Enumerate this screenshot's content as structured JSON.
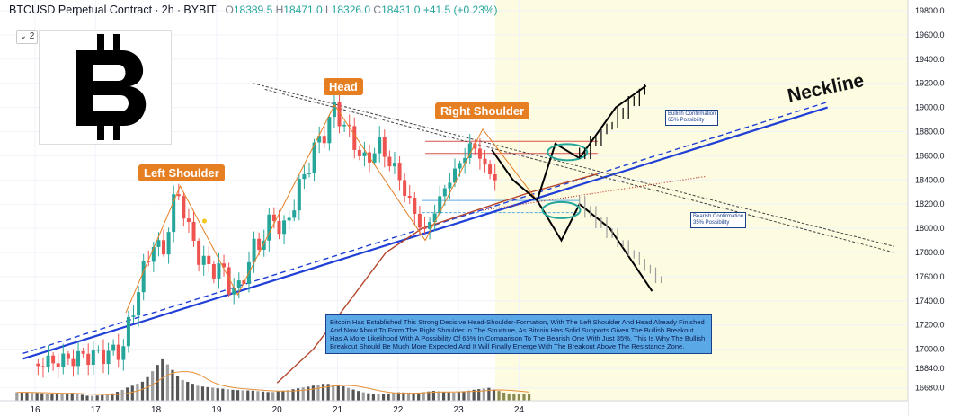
{
  "header": {
    "symbol": "BTCUSD Perpetual Contract",
    "interval": "2h",
    "exchange": "BYBIT",
    "open_label": "O",
    "open": "18389.5",
    "high_label": "H",
    "high": "18471.0",
    "low_label": "L",
    "low": "18326.0",
    "close_label": "C",
    "close": "18431.0",
    "change": "+41.5 (+0.23%)"
  },
  "indicator_toggle": "2",
  "logo": {
    "icon": "bitcoin-logo-icon"
  },
  "annotations": {
    "left_shoulder": "Left Shoulder",
    "head": "Head",
    "right_shoulder": "Right Shoulder",
    "neckline": "Neckline",
    "bullish_confirmation": "Bullish Confirmation\n65% Possibility",
    "bearish_confirmation": "Bearish Confirmation\n35% Possibility",
    "note": "Bitcoin Has Established This Strong Decisive Head-Shoulder-Formation, With The Left Shoulder And Head Already Finished And Now About To Form The Right Shoulder In The Structure, As Bitcoin Has Solid Supports Given The Bullish Breakout Has A More Likelihood With A Possibility Of 65% In Comparison To The Bearish One With Just 35%, This Is Why The Bullish Breakout Should Be Much More Expected And It Will Finally Emerge With The Breakout Above The Resistance Zone."
  },
  "colors": {
    "up": "#26a69a",
    "down": "#ef5350",
    "neckline": "#1f3fd6",
    "pattern": "#e67e22",
    "ma": "#b5452b",
    "projection_zone": "#fdfbe0"
  },
  "chart_data": {
    "type": "candlestick",
    "title": "",
    "xlabel": "",
    "ylabel": "",
    "ylim": [
      16640,
      19800
    ],
    "x_ticks": [
      "16",
      "17",
      "18",
      "19",
      "20",
      "21",
      "22",
      "23",
      "24"
    ],
    "y_ticks": [
      "19800.0",
      "19600.0",
      "19400.0",
      "19200.0",
      "19000.0",
      "18800.0",
      "18600.0",
      "18400.0",
      "18200.0",
      "18000.0",
      "17800.0",
      "17600.0",
      "17400.0",
      "17200.0",
      "17000.0",
      "16840.0",
      "16680.0"
    ],
    "price_path": [
      [
        16.0,
        16880
      ],
      [
        16.4,
        16900
      ],
      [
        16.8,
        16940
      ],
      [
        17.2,
        16960
      ],
      [
        17.45,
        17000
      ],
      [
        17.6,
        17300
      ],
      [
        17.8,
        17650
      ],
      [
        17.95,
        17900
      ],
      [
        18.1,
        17750
      ],
      [
        18.25,
        18150
      ],
      [
        18.4,
        18300
      ],
      [
        18.55,
        17950
      ],
      [
        18.7,
        17800
      ],
      [
        18.85,
        17650
      ],
      [
        19.0,
        17700
      ],
      [
        19.2,
        17550
      ],
      [
        19.35,
        17450
      ],
      [
        19.5,
        17700
      ],
      [
        19.65,
        17850
      ],
      [
        19.8,
        17950
      ],
      [
        19.95,
        18100
      ],
      [
        20.1,
        17950
      ],
      [
        20.3,
        18250
      ],
      [
        20.5,
        18500
      ],
      [
        20.65,
        18700
      ],
      [
        20.8,
        18800
      ],
      [
        20.95,
        19000
      ],
      [
        21.1,
        18850
      ],
      [
        21.25,
        18750
      ],
      [
        21.4,
        18550
      ],
      [
        21.55,
        18600
      ],
      [
        21.7,
        18700
      ],
      [
        21.85,
        18550
      ],
      [
        22.0,
        18450
      ],
      [
        22.15,
        18250
      ],
      [
        22.3,
        18100
      ],
      [
        22.45,
        17950
      ],
      [
        22.6,
        18150
      ],
      [
        22.75,
        18300
      ],
      [
        22.9,
        18450
      ],
      [
        23.05,
        18550
      ],
      [
        23.2,
        18700
      ],
      [
        23.35,
        18600
      ],
      [
        23.5,
        18450
      ],
      [
        23.65,
        18400
      ]
    ],
    "moving_average": [
      [
        20.0,
        16720
      ],
      [
        20.6,
        17000
      ],
      [
        21.2,
        17400
      ],
      [
        21.8,
        17800
      ],
      [
        22.4,
        18000
      ],
      [
        23.0,
        18100
      ],
      [
        23.6,
        18200
      ],
      [
        24.2,
        18300
      ],
      [
        25.3,
        18450
      ]
    ],
    "neckline_points": [
      [
        15.8,
        16920
      ],
      [
        29.1,
        19000
      ]
    ],
    "resistance_zone": [
      18620,
      18720
    ],
    "support_zone": [
      18130,
      18230
    ],
    "bullish_projection": [
      [
        23.55,
        18650
      ],
      [
        23.9,
        18400
      ],
      [
        24.3,
        18230
      ],
      [
        24.6,
        18700
      ],
      [
        25.0,
        18580
      ],
      [
        25.6,
        19000
      ],
      [
        26.1,
        19180
      ]
    ],
    "bearish_projection": [
      [
        24.3,
        18230
      ],
      [
        24.7,
        17900
      ],
      [
        25.0,
        18200
      ],
      [
        25.5,
        18000
      ],
      [
        26.2,
        17480
      ]
    ],
    "volume": {
      "x": [
        16.0,
        16.3,
        16.6,
        16.9,
        17.2,
        17.5,
        17.8,
        18.1,
        18.4,
        18.7,
        19.0,
        19.3,
        19.6,
        19.9,
        20.2,
        20.5,
        20.8,
        21.1,
        21.4,
        21.7,
        22.0,
        22.3,
        22.6,
        22.9,
        23.2,
        23.5,
        23.8
      ],
      "values": [
        12,
        10,
        14,
        9,
        13,
        30,
        40,
        75,
        35,
        22,
        18,
        15,
        14,
        12,
        16,
        22,
        30,
        28,
        20,
        15,
        17,
        14,
        16,
        12,
        15,
        18,
        10
      ]
    }
  }
}
